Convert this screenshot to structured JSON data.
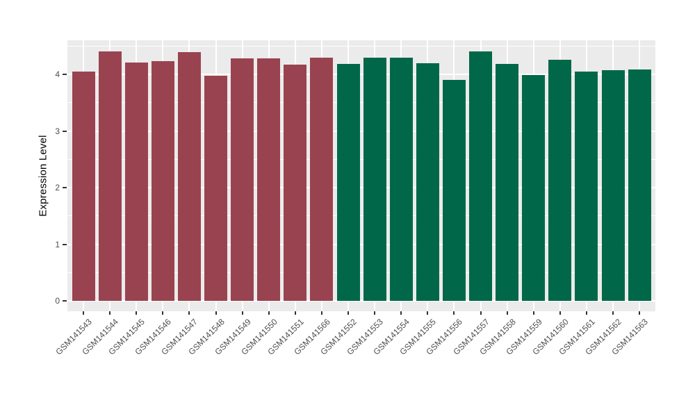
{
  "figure": {
    "background": "#FFFFFF",
    "panel_background": "#EBEBEB",
    "grid_color": "#FFFFFF",
    "axis_text_color": "#4D4D4D",
    "axis_tick_color": "#333333",
    "axis_title_color": "#000000"
  },
  "chart_data": {
    "type": "bar",
    "title": "",
    "xlabel": "",
    "ylabel": "Expression Level",
    "yticks": [
      0,
      1,
      2,
      3,
      4
    ],
    "ylim": [
      -0.18,
      4.6
    ],
    "grid": "white major and minor horizontal lines plus vertical category lines on grey panel",
    "legend_position": "none",
    "x_tick_rotation_deg": 45,
    "categories": [
      "GSM141543",
      "GSM141544",
      "GSM141545",
      "GSM141546",
      "GSM141547",
      "GSM141548",
      "GSM141549",
      "GSM141550",
      "GSM141551",
      "GSM141566",
      "GSM141552",
      "GSM141553",
      "GSM141554",
      "GSM141555",
      "GSM141556",
      "GSM141557",
      "GSM141558",
      "GSM141559",
      "GSM141560",
      "GSM141561",
      "GSM141562",
      "GSM141563"
    ],
    "values": [
      4.05,
      4.4,
      4.21,
      4.23,
      4.39,
      3.98,
      4.28,
      4.28,
      4.17,
      4.29,
      4.19,
      4.29,
      4.3,
      4.2,
      3.9,
      4.4,
      4.19,
      3.99,
      4.26,
      4.05,
      4.07,
      4.09
    ],
    "colors": [
      "#9A4350",
      "#9A4350",
      "#9A4350",
      "#9A4350",
      "#9A4350",
      "#9A4350",
      "#9A4350",
      "#9A4350",
      "#9A4350",
      "#9A4350",
      "#006849",
      "#006849",
      "#006849",
      "#006849",
      "#006849",
      "#006849",
      "#006849",
      "#006849",
      "#006849",
      "#006849",
      "#006849",
      "#006849"
    ],
    "group_colors": {
      "left_group_red": "#9A4350",
      "right_group_green": "#006849"
    }
  }
}
